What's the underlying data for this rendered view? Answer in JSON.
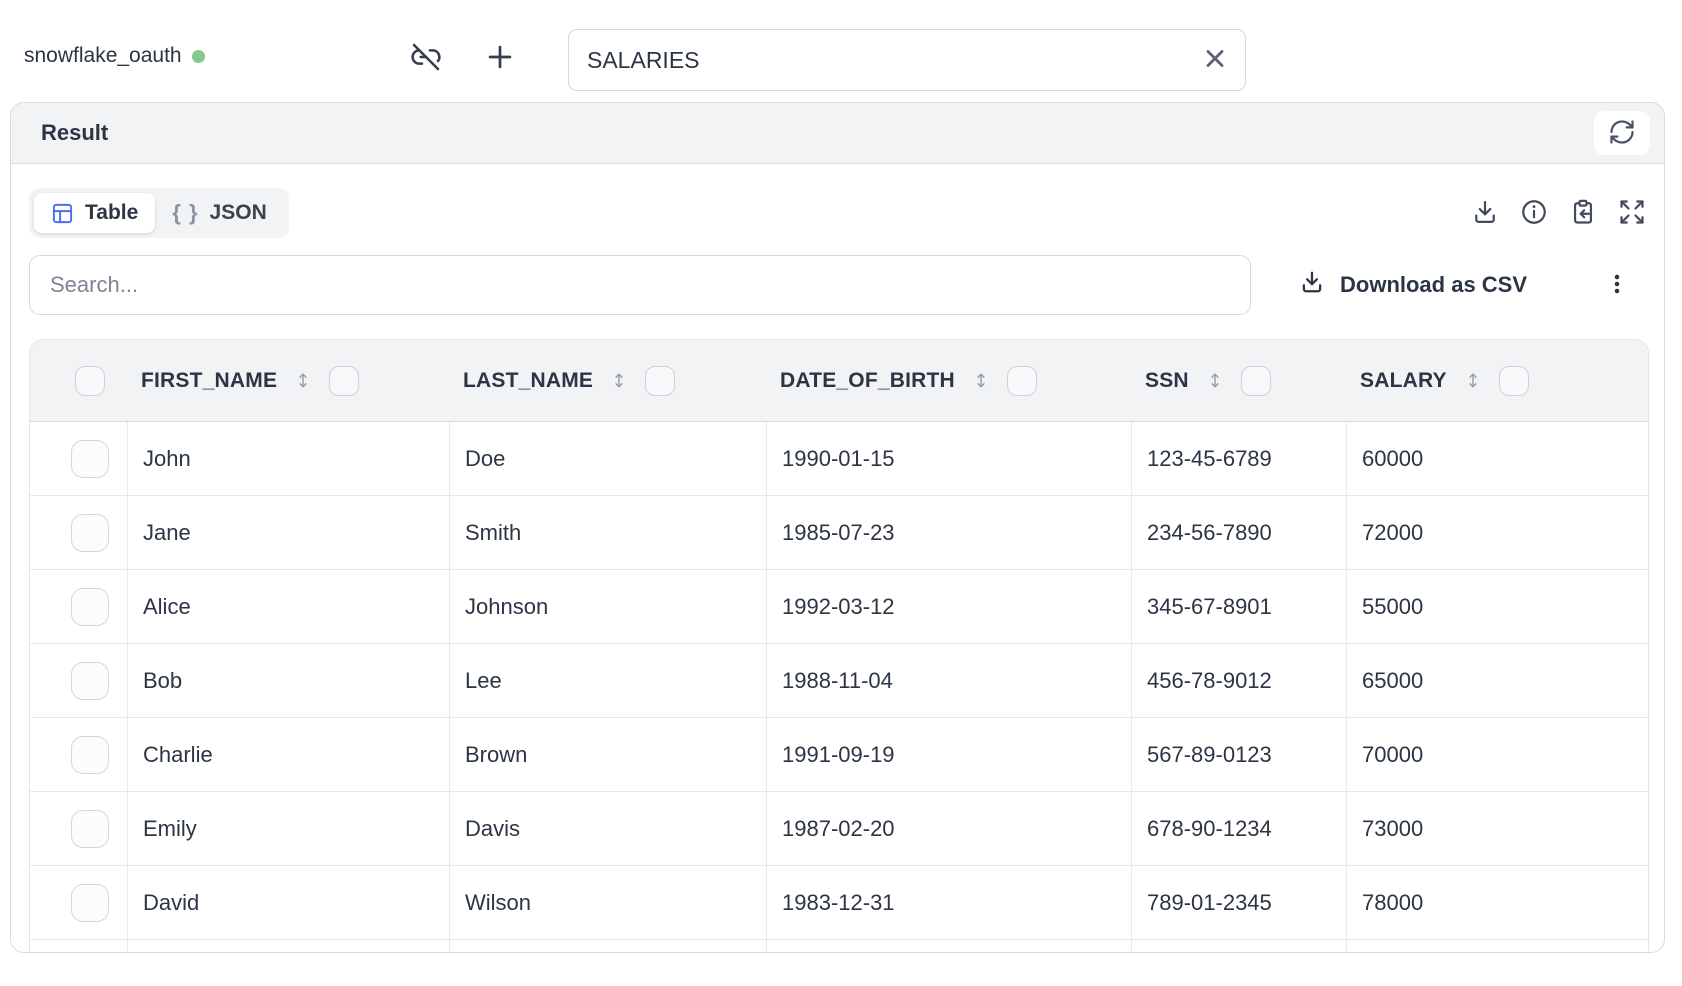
{
  "connection": {
    "name": "snowflake_oauth",
    "status_dot_color": "#83c98f"
  },
  "topbar": {
    "table_name_value": "SALARIES"
  },
  "result_panel": {
    "title": "Result"
  },
  "view_toggle": {
    "table_label": "Table",
    "json_label": "JSON",
    "json_glyph": "{ }",
    "active": "Table"
  },
  "search": {
    "placeholder": "Search..."
  },
  "actions": {
    "download_csv_label": "Download as CSV"
  },
  "table": {
    "columns": [
      {
        "label": "FIRST_NAME"
      },
      {
        "label": "LAST_NAME"
      },
      {
        "label": "DATE_OF_BIRTH"
      },
      {
        "label": "SSN"
      },
      {
        "label": "SALARY"
      }
    ],
    "rows": [
      [
        "John",
        "Doe",
        "1990-01-15",
        "123-45-6789",
        "60000"
      ],
      [
        "Jane",
        "Smith",
        "1985-07-23",
        "234-56-7890",
        "72000"
      ],
      [
        "Alice",
        "Johnson",
        "1992-03-12",
        "345-67-8901",
        "55000"
      ],
      [
        "Bob",
        "Lee",
        "1988-11-04",
        "456-78-9012",
        "65000"
      ],
      [
        "Charlie",
        "Brown",
        "1991-09-19",
        "567-89-0123",
        "70000"
      ],
      [
        "Emily",
        "Davis",
        "1987-02-20",
        "678-90-1234",
        "73000"
      ],
      [
        "David",
        "Wilson",
        "1983-12-31",
        "789-01-2345",
        "78000"
      ]
    ],
    "partial_row_visible": true
  },
  "icons": {
    "connection_status": "green-dot",
    "disconnect": "link-off-icon",
    "add": "plus-icon",
    "clear_input": "x-icon",
    "refresh": "refresh-icon",
    "table_view": "table-grid-icon",
    "json_view": "curly-braces-glyph",
    "toolbar": [
      "download-icon",
      "info-icon",
      "clipboard-paste-icon",
      "expand-icon"
    ],
    "csv": "download-icon",
    "more": "kebab-vertical-icon",
    "column_sort": "up-down-arrow-icon"
  },
  "colors": {
    "accent_blue": "#4a6cf6",
    "status_green": "#83c98f",
    "header_bg": "#f1f3f5",
    "panel_border": "#d7dbe1",
    "text_dark": "#2c3544"
  }
}
